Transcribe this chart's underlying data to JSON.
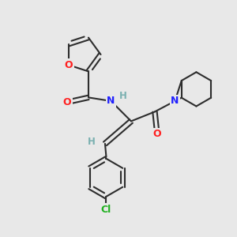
{
  "background_color": "#e8e8e8",
  "bond_color": "#2d2d2d",
  "line_width": 1.5,
  "atom_colors": {
    "O": "#ff2020",
    "N": "#2020ff",
    "Cl": "#20b020",
    "H": "#7ab0b0",
    "C": "#2d2d2d"
  },
  "font_size_atom": 9,
  "font_size_small": 8.5
}
